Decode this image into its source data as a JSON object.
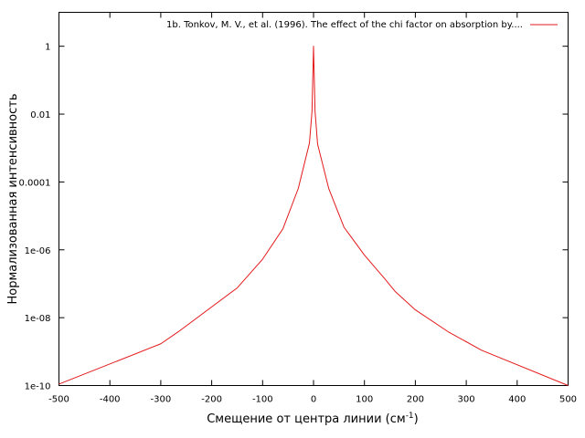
{
  "chart_data": {
    "type": "line",
    "xlabel": "Смещение от центра линии (см",
    "xlabel_sup": "-1",
    "xlabel_end": ")",
    "ylabel": "Нормализованная интенсивность",
    "xlim": [
      -500,
      500
    ],
    "ylim": [
      1e-10,
      10
    ],
    "yscale": "log",
    "grid": false,
    "legend_position": "top-right",
    "x_ticks": [
      {
        "value": -500,
        "label": "-500"
      },
      {
        "value": -400,
        "label": "-400"
      },
      {
        "value": -300,
        "label": "-300"
      },
      {
        "value": -200,
        "label": "-200"
      },
      {
        "value": -100,
        "label": "-100"
      },
      {
        "value": 0,
        "label": "0"
      },
      {
        "value": 100,
        "label": "100"
      },
      {
        "value": 200,
        "label": "200"
      },
      {
        "value": 300,
        "label": "300"
      },
      {
        "value": 400,
        "label": "400"
      },
      {
        "value": 500,
        "label": "500"
      }
    ],
    "y_ticks": [
      {
        "value": 1e-10,
        "label": "1e-10"
      },
      {
        "value": 1e-08,
        "label": "1e-08"
      },
      {
        "value": 1e-06,
        "label": "1e-06"
      },
      {
        "value": 0.0001,
        "label": "0.0001"
      },
      {
        "value": 0.01,
        "label": "0.01"
      },
      {
        "value": 1,
        "label": "1"
      }
    ],
    "series": [
      {
        "name": "1b. Tonkov, M. V., et al. (1996). The effect of the chi factor on absorption by....",
        "color": "#e41a1c",
        "x": [
          -500,
          -300,
          -265,
          -150,
          -100,
          -60,
          -30,
          -8,
          -3,
          0,
          3,
          8,
          30,
          60,
          100,
          140,
          160,
          200,
          265,
          330,
          500
        ],
        "y": [
          1.1e-10,
          1.7e-09,
          3.9e-09,
          7.5e-08,
          5.3e-07,
          4.2e-06,
          6.4e-05,
          0.0014,
          0.012,
          1.0,
          0.012,
          0.0013,
          6.3e-05,
          4.6e-06,
          7e-07,
          1.4e-07,
          6e-08,
          1.7e-08,
          3.8e-09,
          1.1e-09,
          1e-10
        ]
      }
    ]
  }
}
